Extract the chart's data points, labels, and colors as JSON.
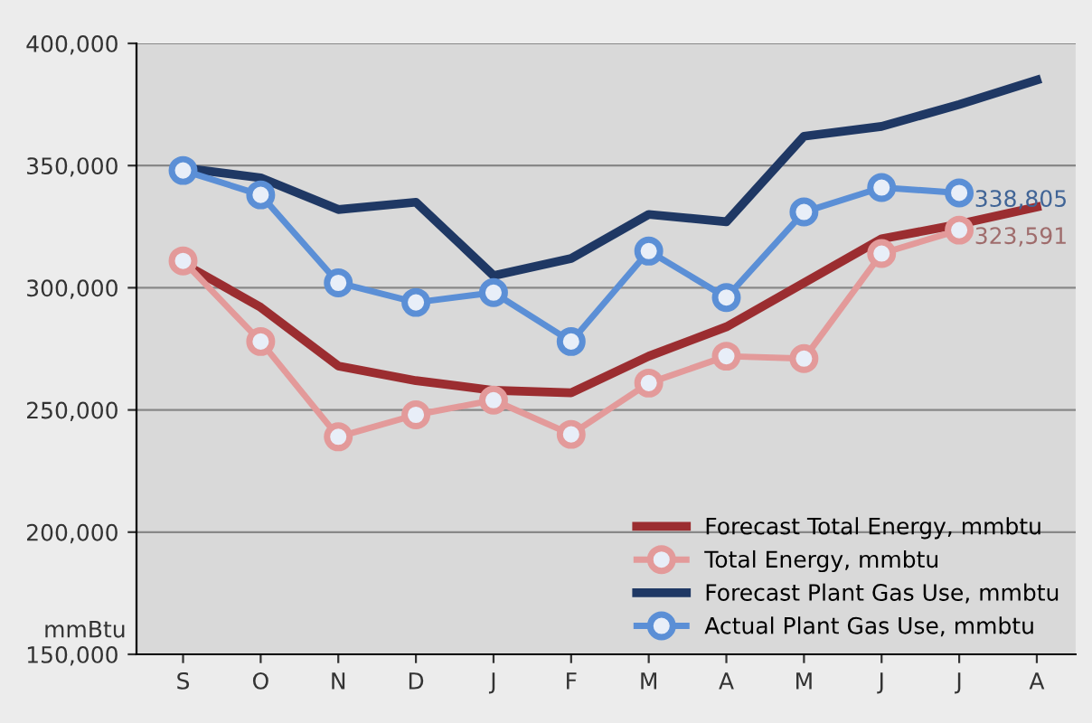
{
  "chart_data": {
    "type": "line",
    "ylabel": "mmBtu",
    "categories": [
      "S",
      "O",
      "N",
      "D",
      "J",
      "F",
      "M",
      "A",
      "M",
      "J",
      "J",
      "A"
    ],
    "ylim": [
      150000,
      400000
    ],
    "yticks": [
      {
        "value": 150000,
        "label": "150,000"
      },
      {
        "value": 200000,
        "label": "200,000"
      },
      {
        "value": 250000,
        "label": "250,000"
      },
      {
        "value": 300000,
        "label": "300,000"
      },
      {
        "value": 350000,
        "label": "350,000"
      },
      {
        "value": 400000,
        "label": "400,000"
      }
    ],
    "grid": "y",
    "legend": "bottom right",
    "series": [
      {
        "name": "Forecast Total Energy, mmbtu",
        "color": "#9b2d30",
        "marker": "none",
        "values": [
          310000,
          292000,
          268000,
          262000,
          258000,
          257000,
          272000,
          284000,
          302000,
          320000,
          326000,
          333000
        ]
      },
      {
        "name": "Total Energy, mmbtu",
        "color": "#e39a9a",
        "marker": "circle",
        "values": [
          311000,
          278000,
          239000,
          248000,
          254000,
          240000,
          261000,
          272000,
          271000,
          314000,
          323591,
          null
        ],
        "value_labels": [
          null,
          null,
          null,
          null,
          null,
          null,
          null,
          null,
          null,
          null,
          "323,591",
          null
        ]
      },
      {
        "name": "Forecast Plant Gas Use, mmbtu",
        "color": "#1f3864",
        "marker": "none",
        "values": [
          349000,
          345000,
          332000,
          335000,
          305000,
          312000,
          330000,
          327000,
          362000,
          366000,
          375000,
          385000
        ]
      },
      {
        "name": "Actual Plant Gas Use, mmbtu",
        "color": "#5b8fd6",
        "marker": "circle",
        "values": [
          348000,
          338000,
          302000,
          294000,
          298000,
          278000,
          315000,
          296000,
          331000,
          341000,
          338805,
          null
        ],
        "value_labels": [
          null,
          null,
          null,
          null,
          null,
          null,
          null,
          null,
          null,
          null,
          "338,805",
          null
        ]
      }
    ]
  }
}
